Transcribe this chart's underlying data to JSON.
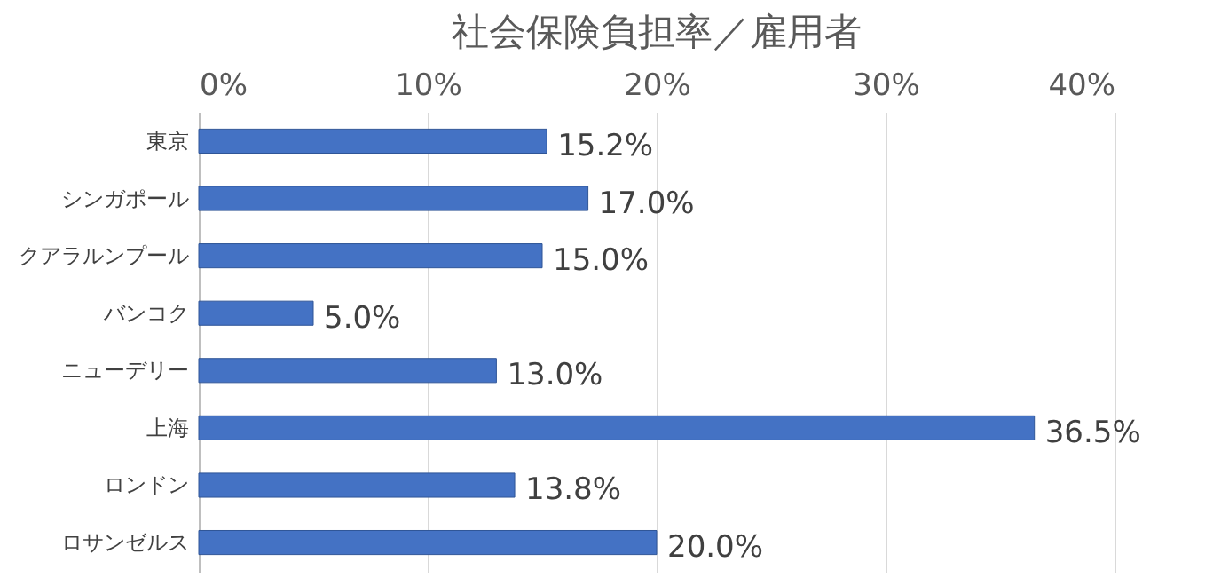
{
  "chart_data": {
    "type": "bar",
    "orientation": "horizontal",
    "title": "社会保険負担率／雇用者",
    "categories": [
      "東京",
      "シンガポール",
      "クアラルンプール",
      "バンコク",
      "ニューデリー",
      "上海",
      "ロンドン",
      "ロサンゼルス"
    ],
    "values": [
      15.2,
      17.0,
      15.0,
      5.0,
      13.0,
      36.5,
      13.8,
      20.0
    ],
    "value_labels": [
      "15.2%",
      "17.0%",
      "15.0%",
      "5.0%",
      "13.0%",
      "36.5%",
      "13.8%",
      "20.0%"
    ],
    "color": "#4472c4",
    "xlim": [
      0,
      40
    ],
    "xticks": [
      {
        "value": 0,
        "label": "0%"
      },
      {
        "value": 10,
        "label": "10%"
      },
      {
        "value": 20,
        "label": "20%"
      },
      {
        "value": 30,
        "label": "30%"
      },
      {
        "value": 40,
        "label": "40%"
      }
    ],
    "grid": "x"
  }
}
